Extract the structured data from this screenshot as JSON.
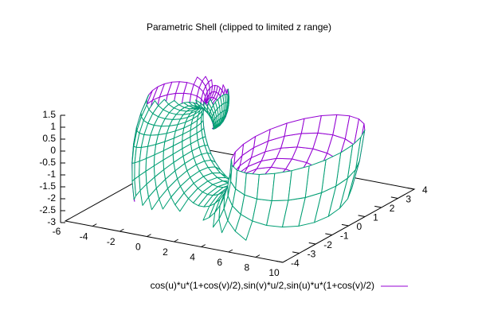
{
  "chart_data": {
    "type": "surface",
    "title": "Parametric Shell (clipped to limited z range)",
    "series": [
      {
        "name": "cos(u)*u*(1+cos(v)/2),sin(v)*u/2,sin(u)*u*(1+cos(v)/2)",
        "color": "#9400d3",
        "back_color": "#009e73"
      }
    ],
    "xlim": [
      -6,
      10
    ],
    "xticks": [
      -6,
      -4,
      -2,
      0,
      2,
      4,
      6,
      8,
      10
    ],
    "ylim": [
      -4,
      4
    ],
    "yticks": [
      -4,
      -3,
      -2,
      -1,
      0,
      1,
      2,
      3,
      4
    ],
    "zlim": [
      -3,
      1.5
    ],
    "zticks": [
      -3,
      -2.5,
      -2,
      -1.5,
      -1,
      -0.5,
      0,
      0.5,
      1,
      1.5
    ],
    "legend": "bottom-right"
  }
}
